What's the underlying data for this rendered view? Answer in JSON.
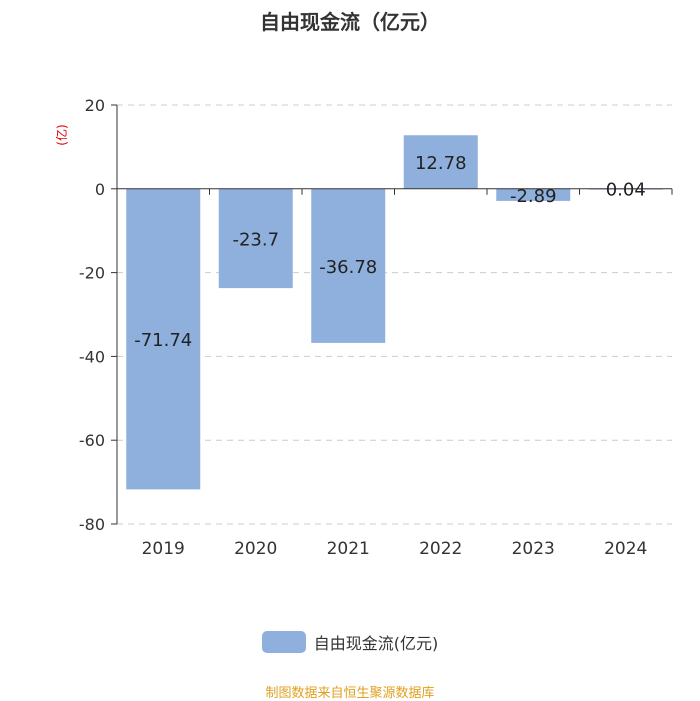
{
  "title": "自由现金流（亿元）",
  "unit_label": "(亿)",
  "legend_label": "自由现金流(亿元)",
  "source": "制图数据来自恒生聚源数据库",
  "colors": {
    "bar": "#8fb0dc",
    "unit": "#e00000",
    "source": "#e0a020"
  },
  "chart_data": {
    "type": "bar",
    "title": "自由现金流（亿元）",
    "categories": [
      "2019",
      "2020",
      "2021",
      "2022",
      "2023",
      "2024"
    ],
    "values": [
      -71.74,
      -23.7,
      -36.78,
      12.78,
      -2.89,
      0.04
    ],
    "labels": [
      "-71.74",
      "-23.7",
      "-36.78",
      "12.78",
      "-2.89",
      "0.04"
    ],
    "ylim": [
      -80,
      20
    ],
    "yticks": [
      20,
      0,
      -20,
      -40,
      -60,
      -80
    ],
    "ylabel": "(亿)",
    "grid": true,
    "legend": "bottom",
    "series": [
      {
        "name": "自由现金流(亿元)",
        "values": [
          -71.74,
          -23.7,
          -36.78,
          12.78,
          -2.89,
          0.04
        ]
      }
    ]
  }
}
